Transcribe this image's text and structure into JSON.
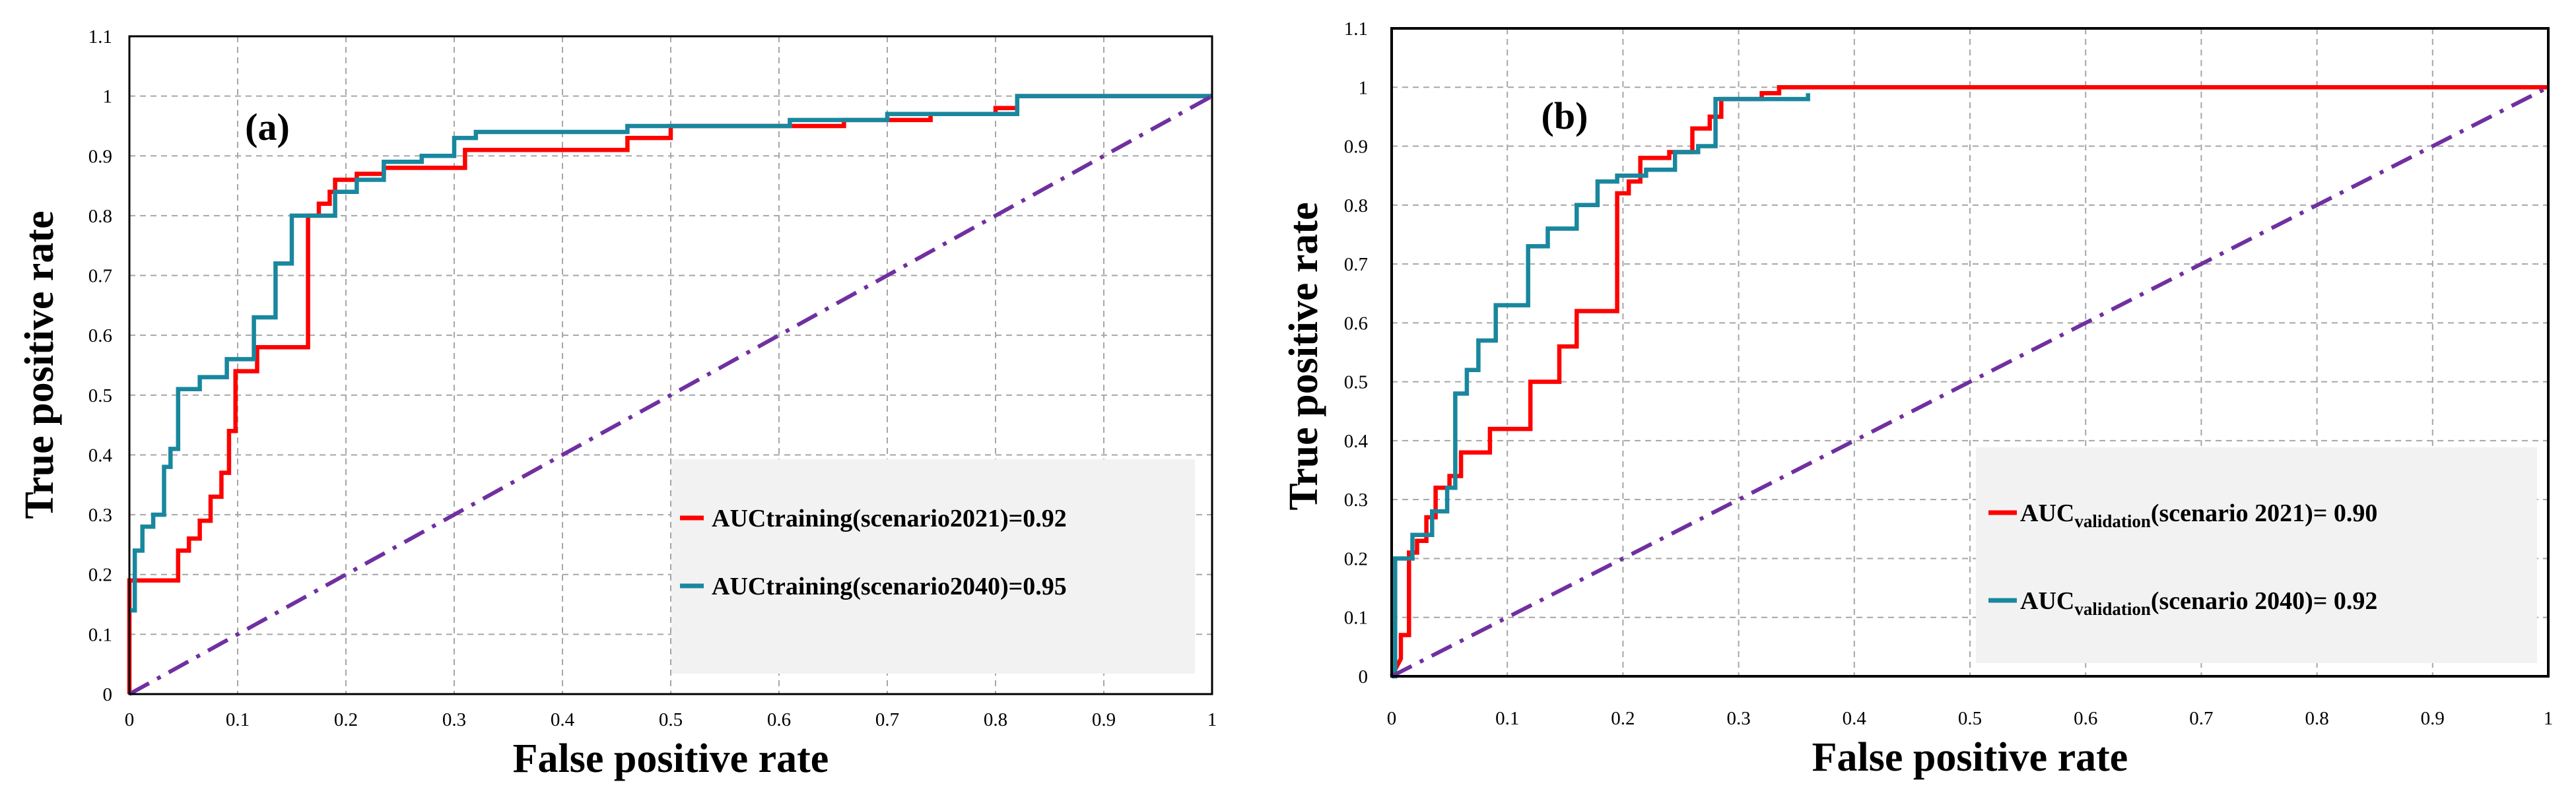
{
  "chart_data": [
    {
      "type": "line",
      "panel_label": "(a)",
      "xlabel": "False positive rate",
      "ylabel": "True positive rate",
      "xlim": [
        0,
        1
      ],
      "ylim": [
        0,
        1.1
      ],
      "x_ticks": [
        "0",
        "0.1",
        "0.2",
        "0.3",
        "0.4",
        "0.5",
        "0.6",
        "0.7",
        "0.8",
        "0.9",
        "1"
      ],
      "y_ticks": [
        "0",
        "0.1",
        "0.2",
        "0.3",
        "0.4",
        "0.5",
        "0.6",
        "0.7",
        "0.8",
        "0.9",
        "1",
        "1.1"
      ],
      "grid": true,
      "legend_position": "lower-right",
      "series": [
        {
          "name": "AUCtraining(scenario2021)=0.92",
          "legend_main": "AUCtraining(scenario2021)=0.92",
          "color": "#ff0000",
          "x": [
            0,
            0,
            0.045,
            0.045,
            0.055,
            0.055,
            0.065,
            0.065,
            0.075,
            0.075,
            0.085,
            0.085,
            0.092,
            0.092,
            0.098,
            0.098,
            0.118,
            0.118,
            0.165,
            0.165,
            0.175,
            0.175,
            0.185,
            0.185,
            0.19,
            0.19,
            0.21,
            0.21,
            0.235,
            0.235,
            0.31,
            0.31,
            0.46,
            0.46,
            0.5,
            0.5,
            0.66,
            0.66,
            0.74,
            0.74,
            0.8,
            0.8,
            0.82,
            0.82,
            1
          ],
          "y": [
            0,
            0.19,
            0.19,
            0.24,
            0.24,
            0.26,
            0.26,
            0.29,
            0.29,
            0.33,
            0.33,
            0.37,
            0.37,
            0.44,
            0.44,
            0.54,
            0.54,
            0.58,
            0.58,
            0.8,
            0.8,
            0.82,
            0.82,
            0.84,
            0.84,
            0.86,
            0.86,
            0.87,
            0.87,
            0.88,
            0.88,
            0.91,
            0.91,
            0.93,
            0.93,
            0.95,
            0.95,
            0.96,
            0.96,
            0.97,
            0.97,
            0.98,
            0.98,
            1.0,
            1.0
          ]
        },
        {
          "name": "AUCtraining(scenario2040)=0.95",
          "legend_main": "AUCtraining(scenario2040)=0.95",
          "color": "#19879e",
          "x": [
            0,
            0.005,
            0.005,
            0.012,
            0.012,
            0.022,
            0.022,
            0.032,
            0.032,
            0.038,
            0.038,
            0.045,
            0.045,
            0.065,
            0.065,
            0.09,
            0.09,
            0.115,
            0.115,
            0.135,
            0.135,
            0.15,
            0.15,
            0.19,
            0.19,
            0.21,
            0.21,
            0.235,
            0.235,
            0.27,
            0.27,
            0.3,
            0.3,
            0.32,
            0.32,
            0.46,
            0.46,
            0.61,
            0.61,
            0.7,
            0.7,
            0.82,
            0.82,
            1
          ],
          "y": [
            0.14,
            0.14,
            0.24,
            0.24,
            0.28,
            0.28,
            0.3,
            0.3,
            0.38,
            0.38,
            0.41,
            0.41,
            0.51,
            0.51,
            0.53,
            0.53,
            0.56,
            0.56,
            0.63,
            0.63,
            0.72,
            0.72,
            0.8,
            0.8,
            0.84,
            0.84,
            0.86,
            0.86,
            0.89,
            0.89,
            0.9,
            0.9,
            0.93,
            0.93,
            0.94,
            0.94,
            0.95,
            0.95,
            0.96,
            0.96,
            0.97,
            0.97,
            1.0,
            1.0
          ]
        },
        {
          "name": "reference",
          "color": "#7030a0",
          "style": "dash-dot",
          "x": [
            0,
            1
          ],
          "y": [
            0,
            1
          ]
        }
      ]
    },
    {
      "type": "line",
      "panel_label": "(b)",
      "xlabel": "False positive rate",
      "ylabel": "True positive rate",
      "xlim": [
        0,
        1
      ],
      "ylim": [
        0,
        1.1
      ],
      "x_ticks": [
        "0",
        "0.1",
        "0.2",
        "0.3",
        "0.4",
        "0.5",
        "0.6",
        "0.7",
        "0.8",
        "0.9",
        "1"
      ],
      "y_ticks": [
        "0",
        "0.1",
        "0.2",
        "0.3",
        "0.4",
        "0.5",
        "0.6",
        "0.7",
        "0.8",
        "0.9",
        "1",
        "1.1"
      ],
      "grid": true,
      "legend_position": "lower-right",
      "series": [
        {
          "name": "AUCvalidation(scenario 2021)= 0.90",
          "legend_pre": "AUC",
          "legend_sub": "validation",
          "legend_post": "(scenario 2021)= 0.90",
          "color": "#ff0000",
          "x": [
            0,
            0.008,
            0.008,
            0.015,
            0.015,
            0.022,
            0.022,
            0.03,
            0.03,
            0.038,
            0.038,
            0.05,
            0.05,
            0.06,
            0.06,
            0.085,
            0.085,
            0.12,
            0.12,
            0.145,
            0.145,
            0.16,
            0.16,
            0.195,
            0.195,
            0.205,
            0.205,
            0.215,
            0.215,
            0.24,
            0.24,
            0.26,
            0.26,
            0.275,
            0.275,
            0.285,
            0.285,
            0.32,
            0.32,
            0.335,
            0.335,
            1
          ],
          "y": [
            0,
            0.03,
            0.07,
            0.07,
            0.21,
            0.21,
            0.23,
            0.23,
            0.27,
            0.27,
            0.32,
            0.32,
            0.34,
            0.34,
            0.38,
            0.38,
            0.42,
            0.42,
            0.5,
            0.5,
            0.56,
            0.56,
            0.62,
            0.62,
            0.82,
            0.82,
            0.84,
            0.84,
            0.88,
            0.88,
            0.89,
            0.89,
            0.93,
            0.93,
            0.95,
            0.95,
            0.98,
            0.98,
            0.99,
            0.99,
            1.0,
            1.0
          ]
        },
        {
          "name": "AUCvalidation(scenario 2040)= 0.92",
          "legend_pre": "AUC",
          "legend_sub": "validation",
          "legend_post": "(scenario 2040)= 0.92",
          "color": "#19879e",
          "x": [
            0,
            0.003,
            0.003,
            0.018,
            0.018,
            0.035,
            0.035,
            0.048,
            0.048,
            0.055,
            0.055,
            0.065,
            0.065,
            0.075,
            0.075,
            0.09,
            0.09,
            0.118,
            0.118,
            0.135,
            0.135,
            0.16,
            0.16,
            0.178,
            0.178,
            0.195,
            0.195,
            0.22,
            0.22,
            0.245,
            0.245,
            0.265,
            0.265,
            0.28,
            0.28,
            0.36,
            0.36
          ],
          "y": [
            0,
            0,
            0.2,
            0.2,
            0.24,
            0.24,
            0.28,
            0.28,
            0.32,
            0.32,
            0.48,
            0.48,
            0.52,
            0.52,
            0.57,
            0.57,
            0.63,
            0.63,
            0.73,
            0.73,
            0.76,
            0.76,
            0.8,
            0.8,
            0.84,
            0.84,
            0.85,
            0.85,
            0.86,
            0.86,
            0.89,
            0.89,
            0.9,
            0.9,
            0.98,
            0.98,
            0.99
          ]
        },
        {
          "name": "reference",
          "color": "#7030a0",
          "style": "dash-dot",
          "x": [
            0,
            1
          ],
          "y": [
            0,
            1
          ]
        }
      ]
    }
  ],
  "colors": {
    "frame": "#000000",
    "grid": "#a6a6a6",
    "legend_background": "#f2f2f2"
  }
}
